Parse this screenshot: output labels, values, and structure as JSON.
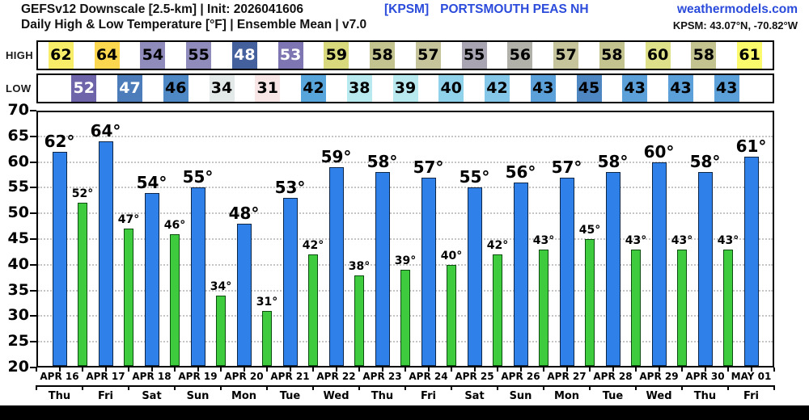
{
  "header": {
    "title_line1": "GEFSv12 Downscale [2.5-km] | Init: 2026041606",
    "title_line2": "Daily High & Low Temperature [°F] | Ensemble Mean | v7.0",
    "station_code": "[KPSM]",
    "station_name": "PORTSMOUTH PEAS NH",
    "site_link": "weathermodels.com",
    "coords": "KPSM: 43.07°N, -70.82°W",
    "accent_blue": "#2b4bdb"
  },
  "strip": {
    "high_label": "HIGH",
    "low_label": "LOW",
    "high_cells": [
      {
        "value": "62",
        "bg": "#f8ed69",
        "fg": "#000000"
      },
      {
        "value": "64",
        "bg": "#fad74f",
        "fg": "#000000"
      },
      {
        "value": "54",
        "bg": "#8f8bba",
        "fg": "#000000"
      },
      {
        "value": "55",
        "bg": "#8f8bba",
        "fg": "#000000"
      },
      {
        "value": "48",
        "bg": "#44619e",
        "fg": "#ffffff"
      },
      {
        "value": "53",
        "bg": "#7d76b2",
        "fg": "#ffffff"
      },
      {
        "value": "59",
        "bg": "#d8d97c",
        "fg": "#000000"
      },
      {
        "value": "58",
        "bg": "#c3c390",
        "fg": "#000000"
      },
      {
        "value": "57",
        "bg": "#c5c49a",
        "fg": "#000000"
      },
      {
        "value": "55",
        "bg": "#a8a4b2",
        "fg": "#000000"
      },
      {
        "value": "56",
        "bg": "#b1b1a9",
        "fg": "#000000"
      },
      {
        "value": "57",
        "bg": "#c5c49a",
        "fg": "#000000"
      },
      {
        "value": "58",
        "bg": "#c3c390",
        "fg": "#000000"
      },
      {
        "value": "60",
        "bg": "#dee08a",
        "fg": "#000000"
      },
      {
        "value": "58",
        "bg": "#c3c390",
        "fg": "#000000"
      },
      {
        "value": "61",
        "bg": "#fbf96c",
        "fg": "#000000"
      }
    ],
    "low_cells": [
      {
        "value": "52",
        "bg": "#6e64aa",
        "fg": "#ffffff"
      },
      {
        "value": "47",
        "bg": "#4d7cba",
        "fg": "#ffffff"
      },
      {
        "value": "46",
        "bg": "#4e89c6",
        "fg": "#000000"
      },
      {
        "value": "34",
        "bg": "#e3e8e8",
        "fg": "#000000"
      },
      {
        "value": "31",
        "bg": "#f8e6e6",
        "fg": "#000000"
      },
      {
        "value": "42",
        "bg": "#58a5dc",
        "fg": "#000000"
      },
      {
        "value": "38",
        "bg": "#b8e9ef",
        "fg": "#000000"
      },
      {
        "value": "39",
        "bg": "#b8e9ef",
        "fg": "#000000"
      },
      {
        "value": "40",
        "bg": "#8fd2ea",
        "fg": "#000000"
      },
      {
        "value": "42",
        "bg": "#85c7e9",
        "fg": "#000000"
      },
      {
        "value": "43",
        "bg": "#5ba0d8",
        "fg": "#000000"
      },
      {
        "value": "45",
        "bg": "#4e86c2",
        "fg": "#000000"
      },
      {
        "value": "43",
        "bg": "#5ba0d8",
        "fg": "#000000"
      },
      {
        "value": "43",
        "bg": "#5ba0d8",
        "fg": "#000000"
      },
      {
        "value": "43",
        "bg": "#5ba0d8",
        "fg": "#000000"
      }
    ]
  },
  "chart_data": {
    "type": "bar",
    "title": "Daily High & Low Temperature [°F] | Ensemble Mean | v7.0",
    "xlabel": "",
    "ylabel": "",
    "ylim": [
      20,
      70
    ],
    "ytick_step": 5,
    "yticks": [
      20,
      25,
      30,
      35,
      40,
      45,
      50,
      55,
      60,
      65,
      70
    ],
    "grid": "dotted horizontal every 5°F",
    "legend": "none",
    "categories": [
      "APR 16",
      "APR 17",
      "APR 18",
      "APR 19",
      "APR 20",
      "APR 21",
      "APR 22",
      "APR 23",
      "APR 24",
      "APR 25",
      "APR 26",
      "APR 27",
      "APR 28",
      "APR 29",
      "APR 30",
      "MAY 01"
    ],
    "categories_days": [
      "Thu",
      "Fri",
      "Sat",
      "Sun",
      "Mon",
      "Tue",
      "Wed",
      "Thu",
      "Fri",
      "Sat",
      "Sun",
      "Mon",
      "Tue",
      "Wed",
      "Thu",
      "Fri"
    ],
    "series": [
      {
        "name": "HIGH",
        "color": "#2f80e8",
        "border_color": "#0d2547",
        "align": "day-center",
        "values": [
          62,
          64,
          54,
          55,
          48,
          53,
          59,
          58,
          57,
          55,
          56,
          57,
          58,
          60,
          58,
          61
        ],
        "labels": [
          "62°",
          "64°",
          "54°",
          "55°",
          "48°",
          "53°",
          "59°",
          "58°",
          "57°",
          "55°",
          "56°",
          "57°",
          "58°",
          "60°",
          "58°",
          "61°"
        ]
      },
      {
        "name": "LOW",
        "color": "#3ecc3e",
        "border_color": "#0e4d10",
        "align": "between-days",
        "values": [
          52,
          47,
          46,
          34,
          31,
          42,
          38,
          39,
          40,
          42,
          43,
          45,
          43,
          43,
          43
        ],
        "labels": [
          "52°",
          "47°",
          "46°",
          "34°",
          "31°",
          "42°",
          "38°",
          "39°",
          "40°",
          "42°",
          "43°",
          "45°",
          "43°",
          "43°",
          "43°"
        ]
      }
    ]
  }
}
